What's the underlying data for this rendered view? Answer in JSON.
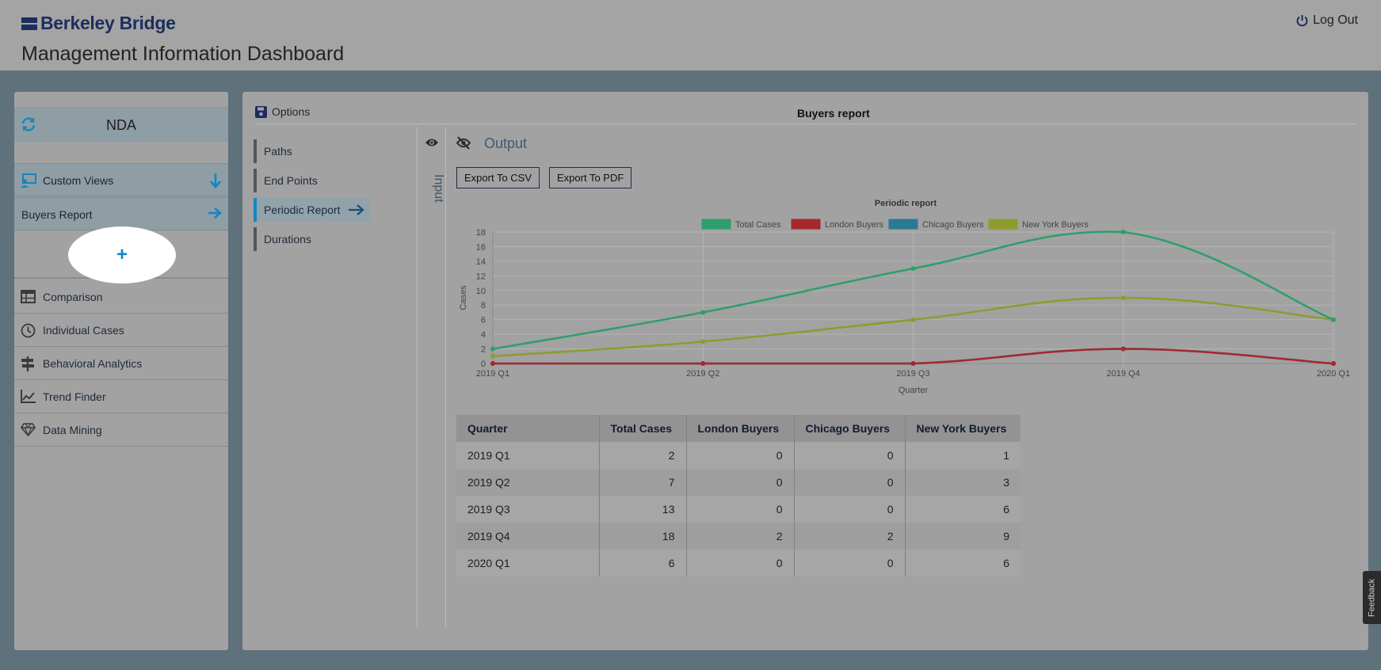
{
  "header": {
    "brand": "Berkeley Bridge",
    "title": "Management Information Dashboard",
    "logout_label": "Log Out"
  },
  "sidebar": {
    "environment": "NDA",
    "custom_views_label": "Custom Views",
    "buyers_report_label": "Buyers Report",
    "add_label": "+",
    "items": [
      {
        "label": "Comparison",
        "icon": "table-icon"
      },
      {
        "label": "Individual Cases",
        "icon": "clock-icon"
      },
      {
        "label": "Behavioral Analytics",
        "icon": "signpost-icon"
      },
      {
        "label": "Trend Finder",
        "icon": "line-chart-icon"
      },
      {
        "label": "Data Mining",
        "icon": "diamond-icon"
      }
    ]
  },
  "main": {
    "options_label": "Options",
    "report_title": "Buyers report",
    "steps": [
      "Paths",
      "End Points",
      "Periodic Report",
      "Durations"
    ],
    "active_step": "Periodic Report",
    "input_label": "Input",
    "output_label": "Output",
    "export_csv_label": "Export To CSV",
    "export_pdf_label": "Export To PDF"
  },
  "chart_data": {
    "type": "line",
    "title": "Periodic report",
    "xlabel": "Quarter",
    "ylabel": "Cases",
    "categories": [
      "2019 Q1",
      "2019 Q2",
      "2019 Q3",
      "2019 Q4",
      "2020 Q1"
    ],
    "ylim": [
      0,
      18
    ],
    "yticks": [
      0,
      2,
      4,
      6,
      8,
      10,
      12,
      14,
      16,
      18
    ],
    "grid": true,
    "legend_position": "top",
    "series": [
      {
        "name": "Total Cases",
        "color": "#2e9e6a",
        "values": [
          2,
          7,
          13,
          18,
          6
        ]
      },
      {
        "name": "London Buyers",
        "color": "#a5282d",
        "values": [
          0,
          0,
          0,
          2,
          0
        ]
      },
      {
        "name": "Chicago Buyers",
        "color": "#2b7a94",
        "values": [
          0,
          0,
          0,
          2,
          0
        ]
      },
      {
        "name": "New York Buyers",
        "color": "#8f9b2c",
        "values": [
          1,
          3,
          6,
          9,
          6
        ]
      }
    ]
  },
  "table": {
    "headers": [
      "Quarter",
      "Total Cases",
      "London Buyers",
      "Chicago Buyers",
      "New York Buyers"
    ],
    "rows": [
      [
        "2019 Q1",
        "2",
        "0",
        "0",
        "1"
      ],
      [
        "2019 Q2",
        "7",
        "0",
        "0",
        "3"
      ],
      [
        "2019 Q3",
        "13",
        "0",
        "0",
        "6"
      ],
      [
        "2019 Q4",
        "18",
        "2",
        "2",
        "9"
      ],
      [
        "2020 Q1",
        "6",
        "0",
        "0",
        "6"
      ]
    ]
  },
  "feedback_label": "Feedback",
  "colors": {
    "accent": "#1287c2",
    "brand": "#1c2d5e",
    "header_bg": "#a4a4a4",
    "page_bg": "#5f717b"
  }
}
